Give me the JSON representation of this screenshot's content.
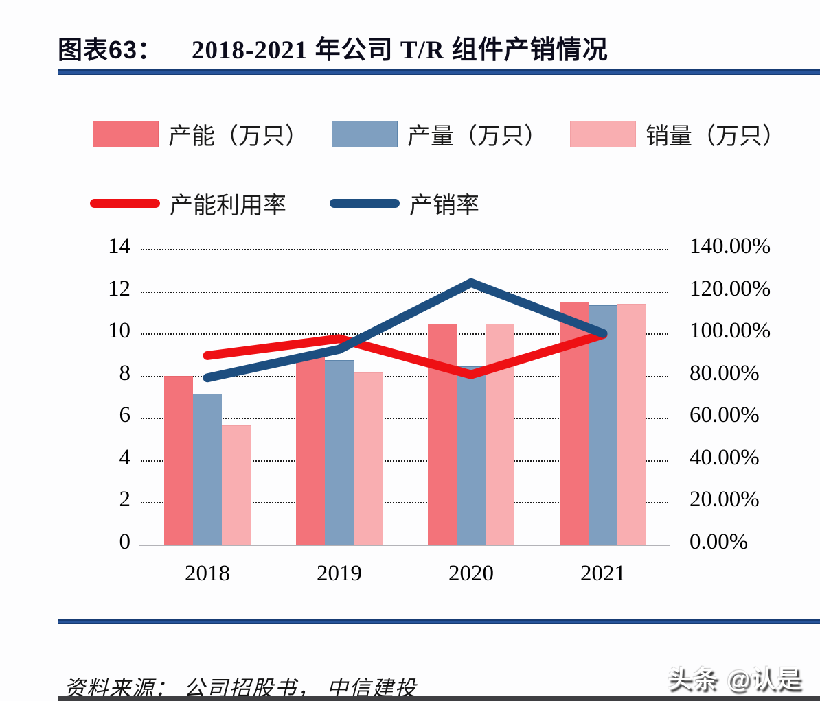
{
  "title": {
    "prefix": "图表63：",
    "main": "2018-2021 年公司 T/R 组件产销情况"
  },
  "legend": {
    "bars": [
      {
        "label": "产能（万只）",
        "color": "#f3737a"
      },
      {
        "label": "产量（万只）",
        "color": "#7f9fc0"
      },
      {
        "label": "销量（万只）",
        "color": "#f9aeb1"
      }
    ],
    "lines": [
      {
        "label": "产能利用率",
        "color": "#ee1014"
      },
      {
        "label": "产销率",
        "color": "#1d4e80"
      }
    ]
  },
  "chart_data": {
    "type": "bar+line combo",
    "categories": [
      "2018",
      "2019",
      "2020",
      "2021"
    ],
    "bar_series": [
      {
        "name": "产能（万只）",
        "axis": "left",
        "color": "#f3737a",
        "border": "#e8666d",
        "values": [
          8.0,
          8.9,
          10.45,
          11.5
        ]
      },
      {
        "name": "产量（万只）",
        "axis": "left",
        "color": "#7f9fc0",
        "border": "#5d85ab",
        "values": [
          7.15,
          8.75,
          8.45,
          11.35
        ]
      },
      {
        "name": "销量（万只）",
        "axis": "left",
        "color": "#f9aeb1",
        "border": "#f2a0a4",
        "values": [
          5.65,
          8.15,
          10.45,
          11.4
        ]
      }
    ],
    "line_series": [
      {
        "name": "产能利用率",
        "axis": "right",
        "color": "#ee1014",
        "values_pct": [
          89.5,
          97.5,
          80.5,
          99.5
        ]
      },
      {
        "name": "产销率",
        "axis": "right",
        "color": "#1d4e80",
        "values_pct": [
          79.0,
          92.5,
          124.0,
          100.0
        ]
      }
    ],
    "left_axis": {
      "min": 0,
      "max": 14,
      "step": 2,
      "ticks": [
        "0",
        "2",
        "4",
        "6",
        "8",
        "10",
        "12",
        "14"
      ]
    },
    "right_axis": {
      "min": 0,
      "max": 140,
      "step": 20,
      "ticks": [
        "0.00%",
        "20.00%",
        "40.00%",
        "60.00%",
        "80.00%",
        "100.00%",
        "120.00%",
        "140.00%"
      ]
    },
    "grid": "dotted horizontal",
    "legend_position": "top"
  },
  "footer": {
    "source": "资料来源： 公司招股书， 中信建投",
    "watermark": "头条 @认是"
  }
}
